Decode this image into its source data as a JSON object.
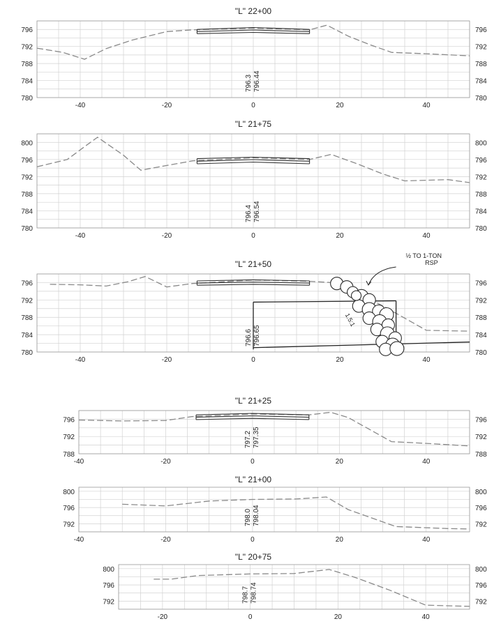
{
  "sections": [
    {
      "title": "\"L\" 22+00",
      "y_ticks": [
        "796",
        "792",
        "788",
        "784",
        "780"
      ],
      "y_range": [
        780,
        798
      ],
      "x_range": [
        -50,
        50
      ],
      "x_ticks": [
        "-40",
        "-20",
        "0",
        "20",
        "40"
      ],
      "elev_labels": [
        "796.3",
        "796.44"
      ],
      "ground": [
        [
          -50,
          791.6
        ],
        [
          -44,
          790.6
        ],
        [
          -39,
          789.0
        ],
        [
          -34,
          791.5
        ],
        [
          -28,
          793.5
        ],
        [
          -20,
          795.5
        ],
        [
          -14,
          795.9
        ],
        [
          0,
          796.3
        ],
        [
          13,
          795.9
        ],
        [
          17,
          797.0
        ],
        [
          22,
          794.4
        ],
        [
          27,
          792.4
        ],
        [
          32,
          790.6
        ],
        [
          40,
          790.3
        ],
        [
          50,
          789.8
        ]
      ],
      "road": {
        "x": [
          -13,
          13
        ],
        "top": [
          796.0,
          796.44,
          796.0
        ],
        "bottom": [
          795.0,
          795.3,
          795.0
        ]
      },
      "rsp": null
    },
    {
      "title": "\"L\" 21+75",
      "y_ticks": [
        "800",
        "796",
        "792",
        "788",
        "784",
        "780"
      ],
      "y_range": [
        780,
        802
      ],
      "x_range": [
        -50,
        50
      ],
      "x_ticks": [
        "-40",
        "-20",
        "0",
        "20",
        "40"
      ],
      "elev_labels": [
        "796.4",
        "796.54"
      ],
      "ground": [
        [
          -50,
          794.3
        ],
        [
          -43,
          796.0
        ],
        [
          -39,
          799.0
        ],
        [
          -36,
          801.2
        ],
        [
          -30,
          797.0
        ],
        [
          -26,
          793.5
        ],
        [
          -20,
          794.6
        ],
        [
          -14,
          795.7
        ],
        [
          0,
          796.4
        ],
        [
          13,
          796.0
        ],
        [
          18,
          797.2
        ],
        [
          24,
          795.0
        ],
        [
          30,
          792.6
        ],
        [
          35,
          791.0
        ],
        [
          45,
          791.3
        ],
        [
          50,
          790.6
        ]
      ],
      "road": {
        "x": [
          -13,
          13
        ],
        "top": [
          796.2,
          796.54,
          796.2
        ],
        "bottom": [
          795.0,
          795.4,
          795.0
        ]
      },
      "rsp": null
    },
    {
      "title": "\"L\" 21+50",
      "y_ticks": [
        "796",
        "792",
        "788",
        "784",
        "780"
      ],
      "y_range": [
        780,
        798
      ],
      "x_range": [
        -50,
        50
      ],
      "x_ticks": [
        "-40",
        "-20",
        "0",
        "20",
        "40"
      ],
      "elev_labels": [
        "796.6",
        "796.65"
      ],
      "ground": [
        [
          -47,
          795.6
        ],
        [
          -40,
          795.5
        ],
        [
          -34,
          795.2
        ],
        [
          -29,
          796.2
        ],
        [
          -25,
          797.4
        ],
        [
          -20,
          795.0
        ],
        [
          -14,
          795.8
        ],
        [
          0,
          796.6
        ],
        [
          13,
          796.3
        ],
        [
          18,
          796.0
        ],
        [
          22,
          794.6
        ],
        [
          30,
          790.6
        ],
        [
          40,
          785.0
        ],
        [
          50,
          784.8
        ]
      ],
      "road": {
        "x": [
          -13,
          13
        ],
        "top": [
          796.4,
          796.65,
          796.4
        ],
        "bottom": [
          795.4,
          795.6,
          795.4
        ]
      },
      "rsp": {
        "callout": [
          "½ TO 1-TON",
          "RSP"
        ],
        "slope": "1.5:1"
      }
    },
    {
      "title": "\"L\" 21+25",
      "y_ticks": [
        "796",
        "792",
        "788"
      ],
      "y_range": [
        788,
        798
      ],
      "x_range": [
        -40,
        50
      ],
      "x_ticks": [
        "-40",
        "-20",
        "0",
        "20",
        "40"
      ],
      "elev_labels": [
        "797.2",
        "797.35"
      ],
      "ground": [
        [
          -40,
          795.8
        ],
        [
          -30,
          795.6
        ],
        [
          -20,
          795.7
        ],
        [
          -14,
          796.6
        ],
        [
          0,
          797.2
        ],
        [
          13,
          797.0
        ],
        [
          18,
          797.6
        ],
        [
          22,
          796.4
        ],
        [
          32,
          790.8
        ],
        [
          40,
          790.4
        ],
        [
          50,
          789.8
        ]
      ],
      "road": {
        "x": [
          -13,
          13
        ],
        "top": [
          797.0,
          797.35,
          797.0
        ],
        "bottom": [
          795.9,
          796.2,
          795.9
        ]
      },
      "rsp": null
    },
    {
      "title": "\"L\" 21+00",
      "y_ticks": [
        "800",
        "796",
        "792"
      ],
      "y_range": [
        790,
        801
      ],
      "x_range": [
        -40,
        50
      ],
      "x_ticks": [
        "-40",
        "-20",
        "0",
        "20",
        "40"
      ],
      "elev_labels": [
        "798.0",
        "798.04"
      ],
      "ground": [
        [
          -30,
          796.8
        ],
        [
          -20,
          796.4
        ],
        [
          -10,
          797.6
        ],
        [
          0,
          798.0
        ],
        [
          10,
          798.1
        ],
        [
          17,
          798.6
        ],
        [
          22,
          795.5
        ],
        [
          33,
          791.3
        ],
        [
          45,
          790.8
        ],
        [
          50,
          790.7
        ]
      ],
      "road": null,
      "rsp": null
    },
    {
      "title": "\"L\" 20+75",
      "y_ticks": [
        "800",
        "796",
        "792"
      ],
      "y_range": [
        790,
        801
      ],
      "x_range": [
        -30,
        50
      ],
      "x_ticks": [
        "-20",
        "0",
        "20",
        "40"
      ],
      "elev_labels": [
        "798.7",
        "798.74"
      ],
      "ground": [
        [
          -22,
          797.4
        ],
        [
          -18,
          797.4
        ],
        [
          -12,
          798.3
        ],
        [
          0,
          798.7
        ],
        [
          10,
          798.8
        ],
        [
          18,
          799.8
        ],
        [
          24,
          797.8
        ],
        [
          32,
          794.6
        ],
        [
          40,
          791.0
        ],
        [
          50,
          790.7
        ]
      ],
      "road": null,
      "rsp": null
    }
  ]
}
